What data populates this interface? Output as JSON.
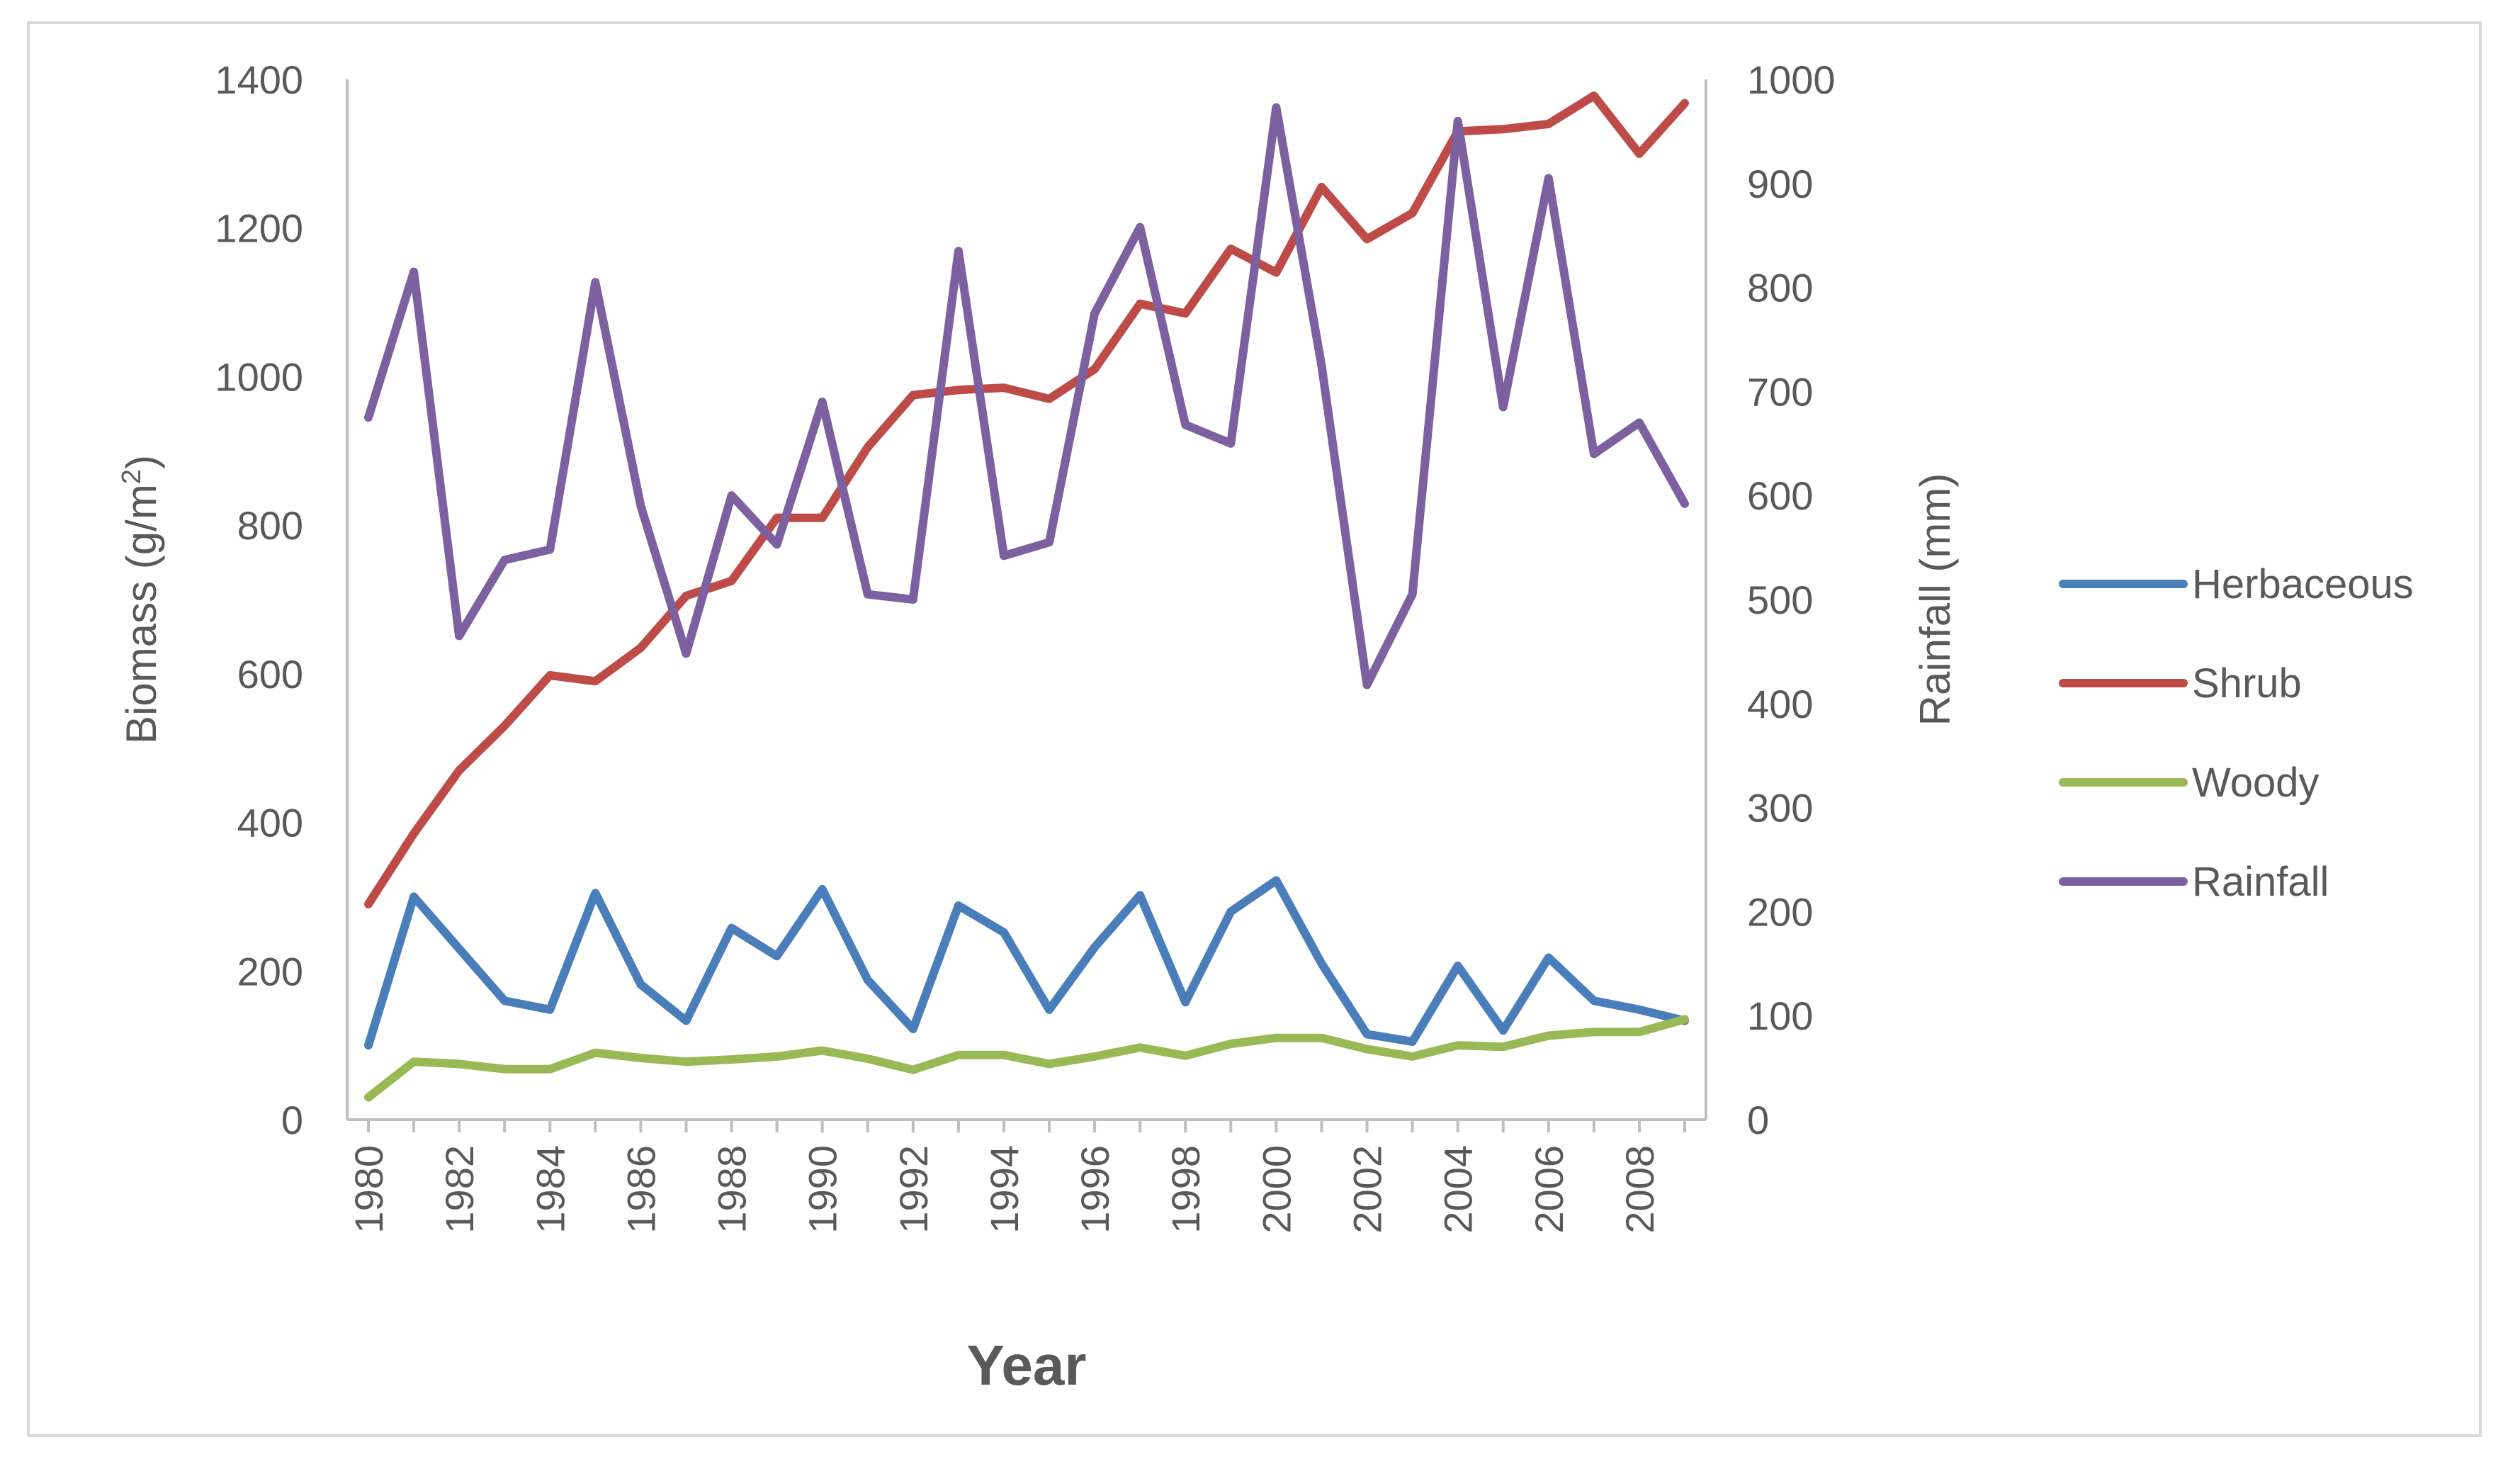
{
  "chart_data": {
    "type": "line",
    "title": "",
    "xlabel": "Year",
    "ylabel": "Biomass (g/m²)",
    "ylabel_main": "Biomass (g/m",
    "ylabel_sup": "2",
    "ylabel_close": ")",
    "y2label": "Rainfall (mm)",
    "ylim": [
      0,
      1400
    ],
    "y2lim": [
      0,
      1000
    ],
    "yticks": [
      0,
      200,
      400,
      600,
      800,
      1000,
      1200,
      1400
    ],
    "y2ticks": [
      0,
      100,
      200,
      300,
      400,
      500,
      600,
      700,
      800,
      900,
      1000
    ],
    "x": [
      1980,
      1981,
      1982,
      1983,
      1984,
      1985,
      1986,
      1987,
      1988,
      1989,
      1990,
      1991,
      1992,
      1993,
      1994,
      1995,
      1996,
      1997,
      1998,
      1999,
      2000,
      2001,
      2002,
      2003,
      2004,
      2005,
      2006,
      2007,
      2008,
      2009
    ],
    "xtick_labels": [
      "1980",
      "1982",
      "1984",
      "1986",
      "1988",
      "1990",
      "1992",
      "1994",
      "1996",
      "1998",
      "2000",
      "2002",
      "2004",
      "2006",
      "2008"
    ],
    "legend_position": "right",
    "grid": false,
    "series": [
      {
        "name": "Herbaceous",
        "axis": "left",
        "color": "#4a7ebb",
        "values": [
          100,
          300,
          230,
          160,
          148,
          305,
          182,
          133,
          258,
          220,
          310,
          188,
          122,
          288,
          252,
          148,
          232,
          302,
          158,
          280,
          322,
          210,
          115,
          105,
          207,
          120,
          218,
          160,
          148,
          133
        ]
      },
      {
        "name": "Shrub",
        "axis": "left",
        "color": "#be4b48",
        "values": [
          290,
          385,
          470,
          530,
          598,
          590,
          635,
          705,
          725,
          810,
          810,
          905,
          975,
          982,
          985,
          970,
          1010,
          1098,
          1085,
          1172,
          1140,
          1255,
          1185,
          1220,
          1330,
          1333,
          1340,
          1378,
          1300,
          1368
        ]
      },
      {
        "name": "Woody",
        "axis": "left",
        "color": "#98b954",
        "values": [
          30,
          78,
          75,
          68,
          68,
          90,
          83,
          78,
          81,
          85,
          93,
          82,
          67,
          87,
          87,
          75,
          85,
          97,
          86,
          102,
          110,
          110,
          95,
          85,
          100,
          98,
          113,
          118,
          118,
          135
        ]
      },
      {
        "name": "Rainfall",
        "axis": "right",
        "color": "#7d60a0",
        "values": [
          675,
          815,
          465,
          538,
          548,
          805,
          590,
          448,
          600,
          553,
          690,
          505,
          500,
          835,
          542,
          555,
          775,
          858,
          668,
          650,
          973,
          725,
          418,
          505,
          960,
          685,
          905,
          640,
          670,
          592
        ]
      }
    ]
  }
}
